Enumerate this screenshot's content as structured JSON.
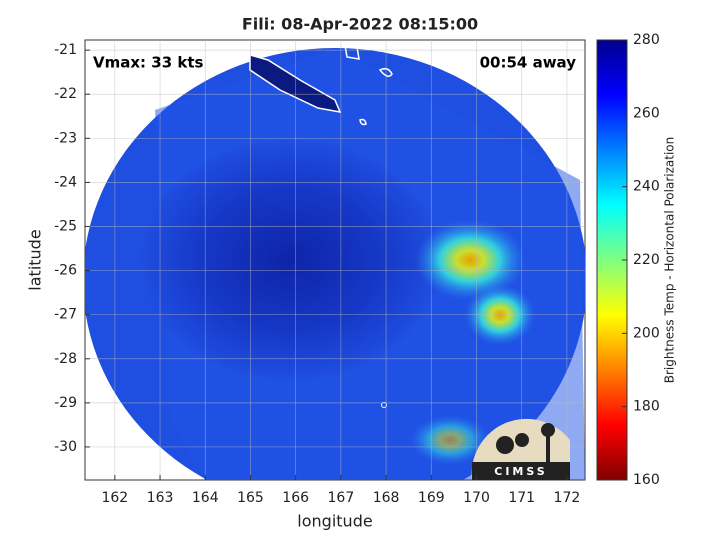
{
  "chart_data": {
    "type": "image",
    "title": "Fili: 08-Apr-2022 08:15:00",
    "annotations": [
      "Vmax: 33 kts",
      "00:54 away"
    ],
    "logo_text": "CIMSS",
    "xlabel": "longitude",
    "ylabel": "latitude",
    "xlim": [
      161.34,
      172.4
    ],
    "xticks": [
      162,
      163,
      164,
      165,
      166,
      167,
      168,
      169,
      170,
      171,
      172
    ],
    "ylim": [
      -30.75,
      -20.77
    ],
    "yticks": [
      -30,
      -29,
      -28,
      -27,
      -26,
      -25,
      -24,
      -23,
      -22,
      -21
    ],
    "grid": true,
    "colorbar": {
      "label": "Brightness Temp - Horizontal Polarization",
      "lim": [
        160,
        280
      ],
      "ticks": [
        160,
        180,
        200,
        220,
        240,
        260,
        280
      ],
      "colormap": [
        "#800000",
        "#ff0000",
        "#ff8000",
        "#ffff00",
        "#80ff80",
        "#00ffff",
        "#0080ff",
        "#0000ff",
        "#00008f"
      ]
    }
  }
}
